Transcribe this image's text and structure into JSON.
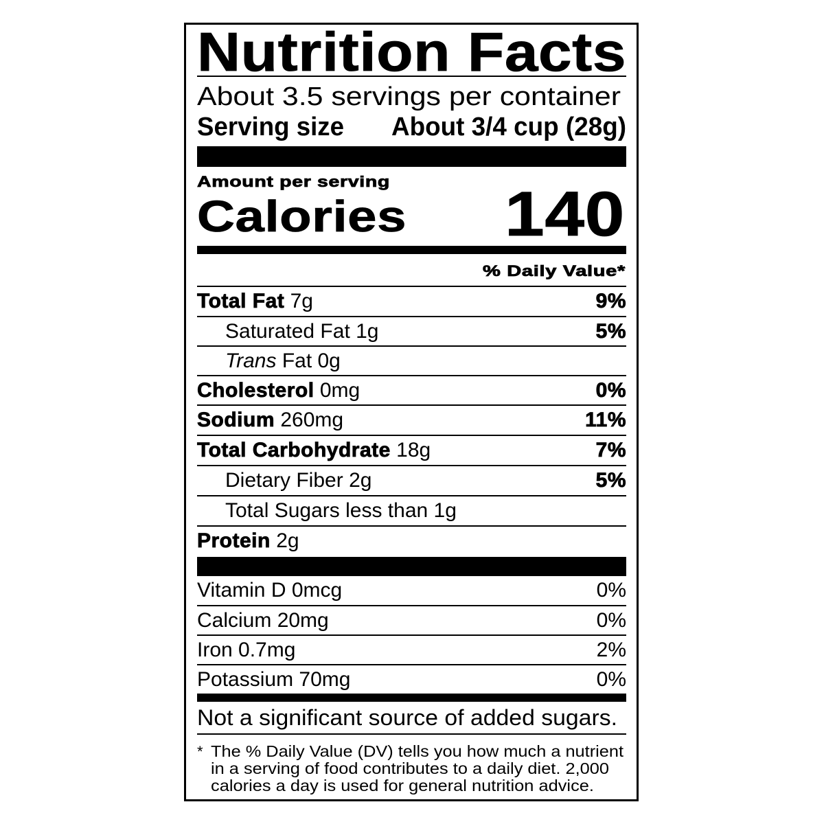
{
  "title": "Nutrition Facts",
  "servings_per_container": "About 3.5 servings per container",
  "serving_size": {
    "label": "Serving size",
    "value": "About 3/4 cup (28g)"
  },
  "amount_per_serving": "Amount per serving",
  "calories": {
    "label": "Calories",
    "value": "140"
  },
  "daily_value_header": "% Daily Value*",
  "nutrients": [
    {
      "name": "Total Fat",
      "amount": "7g",
      "dv": "9%"
    },
    {
      "name": "Saturated Fat",
      "amount": "1g",
      "dv": "5%"
    },
    {
      "name": "Trans",
      "amount": "Fat 0g",
      "dv": ""
    },
    {
      "name": "Cholesterol",
      "amount": "0mg",
      "dv": "0%"
    },
    {
      "name": "Sodium",
      "amount": "260mg",
      "dv": "11%"
    },
    {
      "name": "Total Carbohydrate",
      "amount": "18g",
      "dv": "7%"
    },
    {
      "name": "Dietary Fiber",
      "amount": "2g",
      "dv": "5%"
    },
    {
      "name": "Total Sugars",
      "amount": "less than 1g",
      "dv": ""
    },
    {
      "name": "Protein",
      "amount": "2g",
      "dv": ""
    }
  ],
  "vitamins": [
    {
      "label": "Vitamin D 0mcg",
      "dv": "0%"
    },
    {
      "label": "Calcium 20mg",
      "dv": "0%"
    },
    {
      "label": "Iron 0.7mg",
      "dv": "2%"
    },
    {
      "label": "Potassium 70mg",
      "dv": "0%"
    }
  ],
  "added_sugars_note": "Not a significant source of added sugars.",
  "footnote": {
    "marker": "*",
    "lines": [
      "The % Daily Value (DV) tells you how much a nutrient",
      "in a serving of food contributes to a daily diet. 2,000",
      "calories a day is used for general nutrition advice."
    ]
  }
}
